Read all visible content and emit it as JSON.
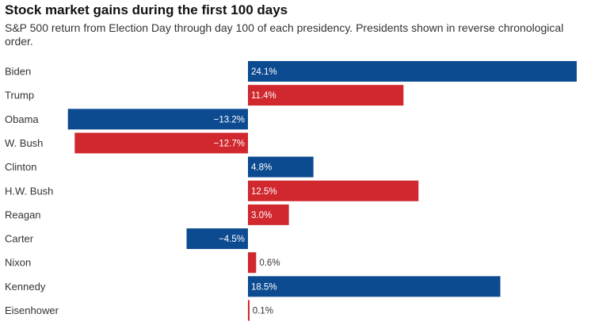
{
  "chart_data": {
    "type": "bar",
    "orientation": "horizontal",
    "title": "Stock market gains during the first 100 days",
    "subtitle": "S&P 500 return from Election Day through day 100 of each presidency. Presidents shown in reverse chronological order.",
    "categories": [
      "Biden",
      "Trump",
      "Obama",
      "W. Bush",
      "Clinton",
      "H.W. Bush",
      "Reagan",
      "Carter",
      "Nixon",
      "Kennedy",
      "Eisenhower"
    ],
    "values": [
      24.1,
      11.4,
      -13.2,
      -12.7,
      4.8,
      12.5,
      3.0,
      -4.5,
      0.6,
      18.5,
      0.1
    ],
    "value_labels": [
      "24.1%",
      "11.4%",
      "−13.2%",
      "−12.7%",
      "4.8%",
      "12.5%",
      "3.0%",
      "−4.5%",
      "0.6%",
      "18.5%",
      "0.1%"
    ],
    "parties": [
      "D",
      "R",
      "D",
      "R",
      "D",
      "R",
      "R",
      "D",
      "R",
      "D",
      "R"
    ],
    "colors": {
      "D": "#0d4b91",
      "R": "#d0282e"
    },
    "unit": "%",
    "xlim": [
      -13.2,
      24.1
    ],
    "grid": false,
    "legend": "none"
  }
}
